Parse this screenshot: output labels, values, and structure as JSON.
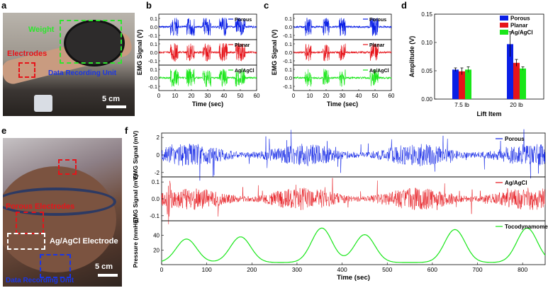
{
  "panels": {
    "a": {
      "label": "a",
      "photo": {
        "weight_label": "Weight",
        "electrodes_label": "Electrodes",
        "recording_label": "Data Recording Unit",
        "scale_label": "5 cm"
      }
    },
    "b": {
      "label": "b"
    },
    "c": {
      "label": "c"
    },
    "d": {
      "label": "d"
    },
    "e": {
      "label": "e",
      "photo": {
        "porous_label": "Porous Electrodes",
        "agcl_label": "Ag/AgCl Electrode",
        "recording_label": "Data Recording Unit",
        "scale_label": "5 cm"
      }
    },
    "f": {
      "label": "f"
    }
  },
  "colors": {
    "porous": "#0a1fe6",
    "planar": "#e6141a",
    "agagcl": "#19e619",
    "green_label": "#2ee62e",
    "red_label": "#e6141a",
    "blue_label": "#1a36e6"
  },
  "chart_data": [
    {
      "id": "b",
      "type": "line",
      "xlabel": "Time (sec)",
      "ylabel": "EMG Signal (V)",
      "xlim": [
        0,
        60
      ],
      "xticks": [
        "0",
        "10",
        "20",
        "30",
        "40",
        "50",
        "60"
      ],
      "ylim": [
        -0.1,
        0.1
      ],
      "yticks": [
        "0.1",
        "0.0",
        "-0.1"
      ],
      "series": [
        {
          "name": "Porous",
          "color": "#0a1fe6",
          "bursts": [
            [
              7,
              12
            ],
            [
              17,
              22
            ],
            [
              27,
              32
            ],
            [
              37,
              42
            ],
            [
              47,
              53
            ]
          ]
        },
        {
          "name": "Planar",
          "color": "#e6141a",
          "bursts": [
            [
              7,
              12
            ],
            [
              17,
              22
            ],
            [
              27,
              32
            ],
            [
              37,
              42
            ],
            [
              47,
              53
            ]
          ]
        },
        {
          "name": "Ag/AgCl",
          "color": "#19e619",
          "bursts": [
            [
              7,
              12
            ],
            [
              17,
              22
            ],
            [
              27,
              32
            ],
            [
              37,
              42
            ],
            [
              47,
              53
            ]
          ]
        }
      ]
    },
    {
      "id": "c",
      "type": "line",
      "xlabel": "Time (sec)",
      "ylabel": "EMG Signal (V)",
      "xlim": [
        0,
        60
      ],
      "xticks": [
        "0",
        "10",
        "20",
        "30",
        "40",
        "50",
        "60"
      ],
      "ylim": [
        -0.1,
        0.1
      ],
      "yticks": [
        "0.1",
        "0.0",
        "-0.1"
      ],
      "series": [
        {
          "name": "Porous",
          "color": "#0a1fe6",
          "bursts": [
            [
              7,
              11
            ],
            [
              18,
              22
            ],
            [
              28,
              32
            ],
            [
              47,
              52
            ]
          ]
        },
        {
          "name": "Planar",
          "color": "#e6141a",
          "bursts": [
            [
              7,
              11
            ],
            [
              18,
              22
            ],
            [
              28,
              32
            ],
            [
              47,
              52
            ]
          ]
        },
        {
          "name": "Ag/AgCl",
          "color": "#19e619",
          "bursts": [
            [
              7,
              11
            ],
            [
              18,
              22
            ],
            [
              28,
              32
            ],
            [
              47,
              52
            ]
          ]
        }
      ]
    },
    {
      "id": "d",
      "type": "bar",
      "title": "",
      "xlabel": "Lift Item",
      "ylabel": "Amplitude (V)",
      "categories": [
        "7.5 lb",
        "20 lb"
      ],
      "ylim": [
        0,
        0.15
      ],
      "yticks": [
        "0.00",
        "0.05",
        "0.10",
        "0.15"
      ],
      "series": [
        {
          "name": "Porous",
          "color": "#0a1fe6",
          "values": [
            0.052,
            0.097
          ],
          "errors": [
            0.003,
            0.022
          ]
        },
        {
          "name": "Planar",
          "color": "#e6141a",
          "values": [
            0.049,
            0.064
          ],
          "errors": [
            0.006,
            0.006
          ]
        },
        {
          "name": "Ag/AgCl",
          "color": "#19e619",
          "values": [
            0.052,
            0.054
          ],
          "errors": [
            0.005,
            0.003
          ]
        }
      ]
    },
    {
      "id": "f",
      "type": "line",
      "xlabel": "Time (sec)",
      "xlim": [
        0,
        850
      ],
      "xticks": [
        "0",
        "100",
        "200",
        "300",
        "400",
        "500",
        "600",
        "700",
        "800"
      ],
      "subplots": [
        {
          "name": "Porous",
          "color": "#0a1fe6",
          "ylabel": "EMG Signal (mV)",
          "ylim": [
            -2.5,
            2.5
          ],
          "yticks": [
            "2",
            "0",
            "-2"
          ]
        },
        {
          "name": "Ag/AgCl",
          "color": "#e6141a",
          "ylabel": "EMG Signal (mV)",
          "ylim": [
            -0.13,
            0.13
          ],
          "yticks": [
            "0.1",
            "0.0",
            "-0.1"
          ]
        },
        {
          "name": "Tocodynamometer",
          "color": "#19e619",
          "ylabel": "Pressure (mmHg)",
          "ylim": [
            0,
            60
          ],
          "yticks": [
            "20",
            "40"
          ],
          "peaks": [
            [
              55,
              35
            ],
            [
              175,
              38
            ],
            [
              355,
              50
            ],
            [
              450,
              41
            ],
            [
              650,
              48
            ],
            [
              810,
              50
            ]
          ]
        }
      ]
    }
  ]
}
